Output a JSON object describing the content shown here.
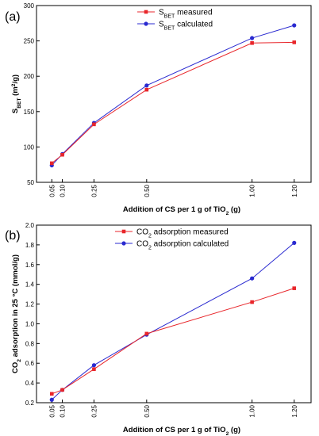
{
  "chart_data": [
    {
      "type": "line",
      "panel_label": "(a)",
      "x": [
        0.05,
        0.1,
        0.25,
        0.5,
        1.0,
        1.2
      ],
      "x_tick_labels": [
        "0.05",
        "0.10",
        "0.25",
        "0.50",
        "1.00",
        "1.20"
      ],
      "xlabel": {
        "pre": "Addition of CS per 1 g of TiO",
        "sub": "2",
        "post": " (g)"
      },
      "ylabel": {
        "pre": "S",
        "sub": "BET",
        "mid": " (m",
        "sup": "2",
        "post": "/g)"
      },
      "ylim": [
        50,
        300
      ],
      "y_ticks": [
        50,
        100,
        150,
        200,
        250,
        300
      ],
      "grid": false,
      "legend_position": "top-center",
      "series": [
        {
          "name": {
            "pre": "S",
            "sub": "BET",
            "post": " measured"
          },
          "color": "#e8262b",
          "marker": "square",
          "values": [
            77,
            89,
            132,
            181,
            247,
            248
          ]
        },
        {
          "name": {
            "pre": "S",
            "sub": "BET",
            "post": " calculated"
          },
          "color": "#2a2ad0",
          "marker": "circle",
          "values": [
            74,
            90,
            134,
            187,
            254,
            272
          ]
        }
      ]
    },
    {
      "type": "line",
      "panel_label": "(b)",
      "x": [
        0.05,
        0.1,
        0.25,
        0.5,
        1.0,
        1.2
      ],
      "x_tick_labels": [
        "0.05",
        "0.10",
        "0.25",
        "0.50",
        "1.00",
        "1.20"
      ],
      "xlabel": {
        "pre": "Addition of CS per 1 g of TiO",
        "sub": "2",
        "post": " (g)"
      },
      "ylabel": {
        "pre": "CO",
        "sub": "2",
        "post": " adsorption in 25 °C (mmol/g)"
      },
      "ylim": [
        0.2,
        2.0
      ],
      "y_ticks": [
        0.2,
        0.4,
        0.6,
        0.8,
        1.0,
        1.2,
        1.4,
        1.6,
        1.8,
        2.0
      ],
      "grid": false,
      "legend_position": "top-center",
      "series": [
        {
          "name": {
            "pre": "CO",
            "sub": "2",
            "post": " adsorption measured"
          },
          "color": "#e8262b",
          "marker": "square",
          "values": [
            0.29,
            0.33,
            0.54,
            0.9,
            1.22,
            1.36
          ]
        },
        {
          "name": {
            "pre": "CO",
            "sub": "2",
            "post": " adsorption calculated"
          },
          "color": "#2a2ad0",
          "marker": "circle",
          "values": [
            0.23,
            0.33,
            0.58,
            0.89,
            1.46,
            1.82
          ]
        }
      ]
    }
  ]
}
